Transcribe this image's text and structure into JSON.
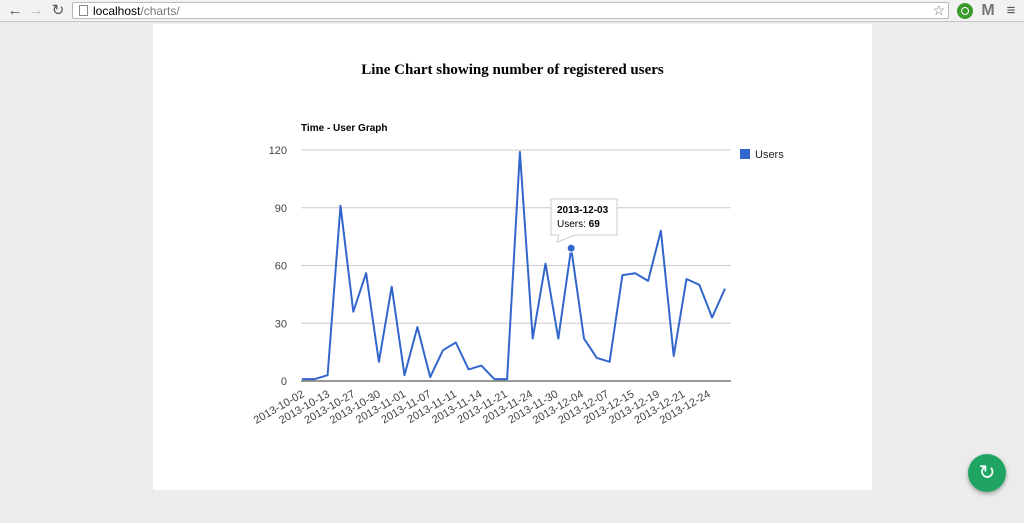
{
  "browser": {
    "back_icon": "back-arrow-icon",
    "forward_icon": "forward-arrow-icon",
    "reload_icon": "reload-icon",
    "url_host": "localhost",
    "url_path": "/charts/",
    "bookmark_icon": "star-icon",
    "menu_icon": "hamburger-menu-icon"
  },
  "page": {
    "title": "Line Chart showing number of registered users"
  },
  "colors": {
    "series": "#3366cc",
    "tooltip_border": "#cccccc",
    "fab": "#1fa463"
  },
  "fab": {
    "icon": "sync-icon"
  },
  "chart_data": {
    "type": "line",
    "title": "Time - User Graph",
    "xlabel": "",
    "ylabel": "",
    "ylim": [
      0,
      120
    ],
    "yticks": [
      0,
      30,
      60,
      90,
      120
    ],
    "grid": true,
    "legend": "right",
    "series": [
      {
        "name": "Users",
        "color": "#3366cc",
        "values": [
          1,
          1,
          3,
          91,
          36,
          56,
          10,
          49,
          3,
          28,
          2,
          16,
          20,
          6,
          8,
          1,
          1,
          119,
          22,
          61,
          22,
          69,
          22,
          12,
          10,
          55,
          56,
          52,
          78,
          13,
          53,
          50,
          33,
          48
        ]
      }
    ],
    "x_tick_labels": [
      "2013-10-02",
      "2013-10-13",
      "2013-10-27",
      "2013-10-30",
      "2013-11-01",
      "2013-11-07",
      "2013-11-11",
      "2013-11-14",
      "2013-11-21",
      "2013-11-24",
      "2013-11-30",
      "2013-12-04",
      "2013-12-07",
      "2013-12-15",
      "2013-12-19",
      "2013-12-21",
      "2013-12-24"
    ],
    "tooltip": {
      "title": "2013-12-03",
      "label": "Users:",
      "value": "69",
      "point_index": 21
    }
  }
}
